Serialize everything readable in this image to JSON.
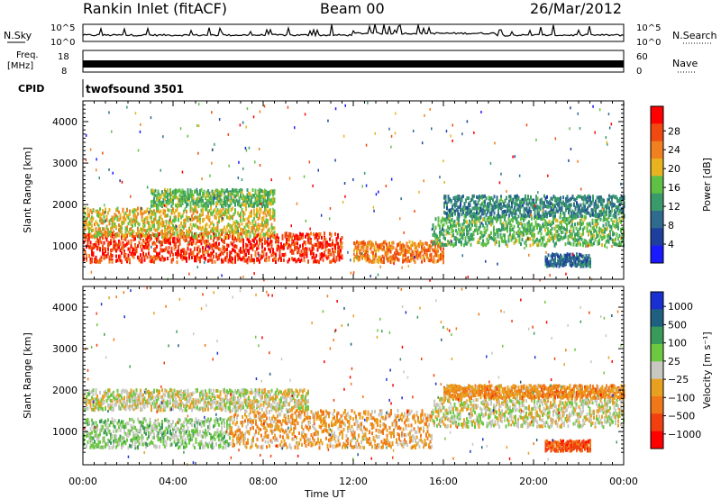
{
  "header": {
    "station": "Rankin Inlet (fitACF)",
    "beam": "Beam 00",
    "date": "26/Mar/2012"
  },
  "noise_panel": {
    "left_label": "N.Sky",
    "right_label": "N.Search",
    "ticks_left": [
      "10^5",
      "10^0"
    ],
    "ticks_right": [
      "10^5",
      "10^0"
    ]
  },
  "freq_panel": {
    "left_label_1": "Freq.",
    "left_label_2": "[MHz]",
    "left_ticks": [
      "18",
      "8"
    ],
    "right_label": "Nave",
    "right_ticks": [
      "60",
      "0"
    ]
  },
  "cpid_panel": {
    "label": "CPID",
    "value": "twofsound 3501"
  },
  "time_axis": {
    "label": "Time UT",
    "ticks": [
      "00:00",
      "04:00",
      "08:00",
      "12:00",
      "16:00",
      "20:00",
      "00:00"
    ]
  },
  "colors": {
    "power": [
      "#1a1aff",
      "#1f3f9f",
      "#2e6b8e",
      "#3a9a6a",
      "#5fc045",
      "#e8b320",
      "#f08020",
      "#f04a10",
      "#ff0000"
    ],
    "velocity": [
      "#1a2fd0",
      "#1f5f7f",
      "#3a9a5a",
      "#6cc840",
      "#c8c8c0",
      "#e8a020",
      "#f07818",
      "#f04010",
      "#ff0000"
    ]
  },
  "chart_data": [
    {
      "type": "heatmap",
      "title": "",
      "xlabel": "Time UT",
      "ylabel": "Slant Range [km]",
      "x_ticks": [
        "00:00",
        "04:00",
        "08:00",
        "12:00",
        "16:00",
        "20:00",
        "00:00"
      ],
      "y_ticks": [
        "1000",
        "2000",
        "3000",
        "4000"
      ],
      "ylim": [
        200,
        4500
      ],
      "colorbar": {
        "label": "Power [dB]",
        "ticks": [
          "4",
          "8",
          "12",
          "16",
          "20",
          "24",
          "28"
        ],
        "range": [
          0,
          30
        ]
      },
      "bands": [
        {
          "t0": 0.0,
          "t1": 11.5,
          "r_center": 1000,
          "r_width": 700,
          "value": 26
        },
        {
          "t0": 0.0,
          "t1": 8.5,
          "r_center": 1600,
          "r_width": 700,
          "value": 18
        },
        {
          "t0": 3.0,
          "t1": 8.5,
          "r_center": 2200,
          "r_width": 400,
          "value": 14
        },
        {
          "t0": 12.0,
          "t1": 16.0,
          "r_center": 900,
          "r_width": 500,
          "value": 22
        },
        {
          "t0": 15.5,
          "t1": 24.0,
          "r_center": 1400,
          "r_width": 700,
          "value": 14
        },
        {
          "t0": 16.0,
          "t1": 24.0,
          "r_center": 2000,
          "r_width": 500,
          "value": 10
        },
        {
          "t0": 20.5,
          "t1": 22.5,
          "r_center": 700,
          "r_width": 300,
          "value": 8
        }
      ]
    },
    {
      "type": "heatmap",
      "title": "",
      "xlabel": "Time UT",
      "ylabel": "Slant Range [km]",
      "x_ticks": [
        "00:00",
        "04:00",
        "08:00",
        "12:00",
        "16:00",
        "20:00",
        "00:00"
      ],
      "y_ticks": [
        "1000",
        "2000",
        "3000",
        "4000"
      ],
      "ylim": [
        200,
        4500
      ],
      "colorbar": {
        "label": "Velocity [m s⁻¹]",
        "ticks": [
          "1000",
          "500",
          "100",
          "25",
          "−25",
          "−100",
          "−500",
          "−1000"
        ],
        "range": [
          -1200,
          1200
        ]
      },
      "bands": [
        {
          "t0": 0.0,
          "t1": 6.5,
          "r_center": 1000,
          "r_width": 700,
          "value": 200
        },
        {
          "t0": 6.5,
          "t1": 15.5,
          "r_center": 1100,
          "r_width": 900,
          "value": -300
        },
        {
          "t0": 0.0,
          "t1": 10.0,
          "r_center": 1800,
          "r_width": 500,
          "value": 0
        },
        {
          "t0": 15.5,
          "t1": 24.0,
          "r_center": 1500,
          "r_width": 700,
          "value": 0
        },
        {
          "t0": 16.0,
          "t1": 24.0,
          "r_center": 2000,
          "r_width": 300,
          "value": -400
        },
        {
          "t0": 20.5,
          "t1": 22.5,
          "r_center": 700,
          "r_width": 250,
          "value": -700
        }
      ]
    }
  ]
}
